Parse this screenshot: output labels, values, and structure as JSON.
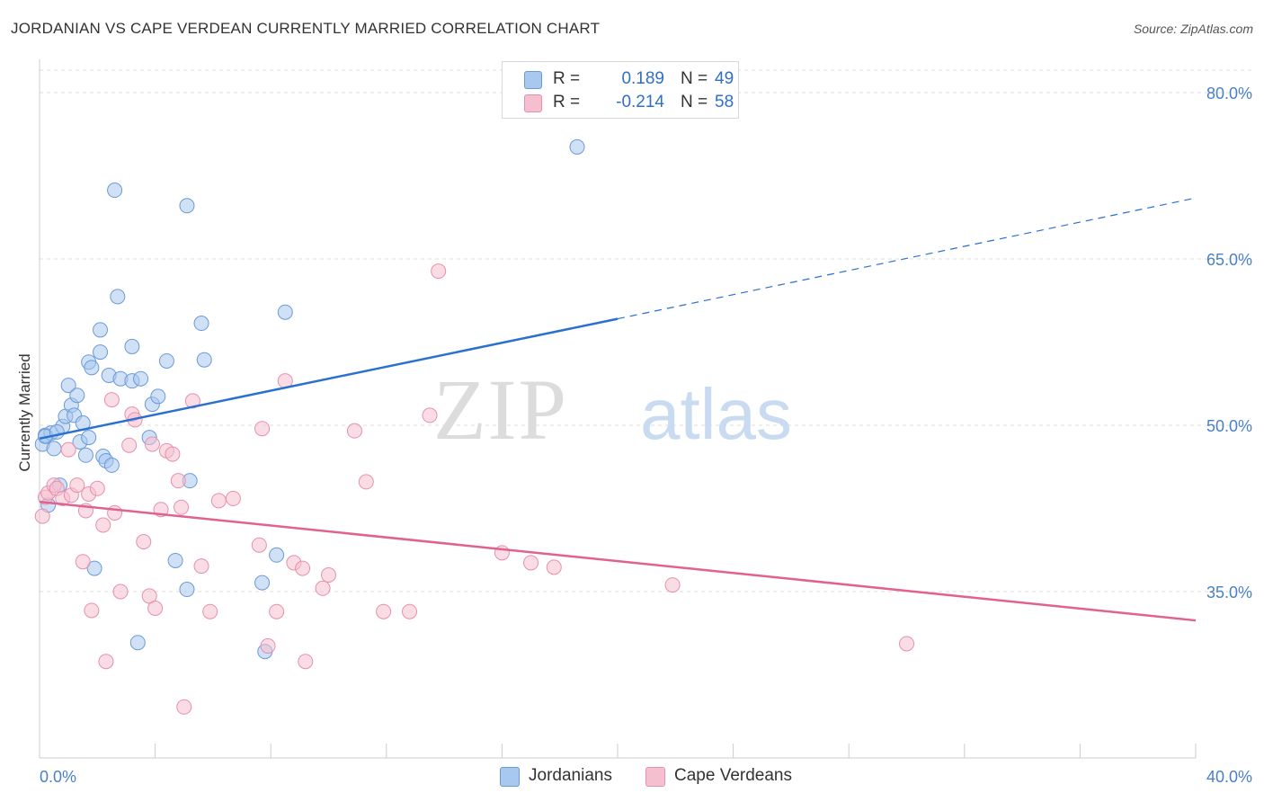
{
  "header": {
    "title": "JORDANIAN VS CAPE VERDEAN CURRENTLY MARRIED CORRELATION CHART",
    "source": "Source: ZipAtlas.com"
  },
  "legend": {
    "rows": [
      {
        "r_label": "R =",
        "r_value": "0.189",
        "n_label": "N =",
        "n_value": "49"
      },
      {
        "r_label": "R =",
        "r_value": "-0.214",
        "n_label": "N =",
        "n_value": "58"
      }
    ]
  },
  "bottom_legend": {
    "items": [
      {
        "label": "Jordanians"
      },
      {
        "label": "Cape Verdeans"
      }
    ]
  },
  "watermark": {
    "zip": "ZIP",
    "atlas": "atlas"
  },
  "colors": {
    "blue_fill": "#a9c8ef",
    "blue_stroke": "#6a9ad8",
    "blue_line": "#2a70d0",
    "pink_fill": "#f6bfd0",
    "pink_stroke": "#e690ad",
    "pink_line": "#e0628e",
    "grid": "#dddddd",
    "tick_text": "#4a80c8"
  },
  "chart_data": {
    "type": "scatter",
    "title": "JORDANIAN VS CAPE VERDEAN CURRENTLY MARRIED CORRELATION CHART",
    "xlabel": "",
    "ylabel": "Currently Married",
    "xlim": [
      0,
      40
    ],
    "ylim": [
      20,
      83
    ],
    "x_tick_labels": [
      "0.0%",
      "40.0%"
    ],
    "y_ticks": [
      35,
      50,
      65,
      80
    ],
    "y_tick_labels": [
      "35.0%",
      "50.0%",
      "65.0%",
      "80.0%"
    ],
    "grid": true,
    "legend_position": "top-center",
    "series": [
      {
        "name": "Jordanians",
        "r": 0.189,
        "n": 49,
        "trend": {
          "x0": 0,
          "y0": 48.8,
          "x1": 20,
          "y1": 59.6,
          "x_dash_end": 40,
          "y_dash_end": 70.5
        },
        "points": [
          {
            "x": 0.1,
            "y": 48.3
          },
          {
            "x": 0.2,
            "y": 49.1
          },
          {
            "x": 0.4,
            "y": 49.3
          },
          {
            "x": 0.5,
            "y": 47.9
          },
          {
            "x": 0.3,
            "y": 42.8
          },
          {
            "x": 0.7,
            "y": 44.6
          },
          {
            "x": 0.8,
            "y": 49.9
          },
          {
            "x": 0.9,
            "y": 50.8
          },
          {
            "x": 1.0,
            "y": 53.6
          },
          {
            "x": 1.1,
            "y": 51.8
          },
          {
            "x": 1.2,
            "y": 50.9
          },
          {
            "x": 1.3,
            "y": 52.7
          },
          {
            "x": 1.4,
            "y": 48.5
          },
          {
            "x": 1.5,
            "y": 50.2
          },
          {
            "x": 1.6,
            "y": 47.3
          },
          {
            "x": 1.7,
            "y": 48.9
          },
          {
            "x": 1.7,
            "y": 55.7
          },
          {
            "x": 1.8,
            "y": 55.2
          },
          {
            "x": 2.1,
            "y": 58.6
          },
          {
            "x": 2.1,
            "y": 56.6
          },
          {
            "x": 2.2,
            "y": 47.2
          },
          {
            "x": 2.3,
            "y": 46.8
          },
          {
            "x": 2.4,
            "y": 54.5
          },
          {
            "x": 2.5,
            "y": 46.4
          },
          {
            "x": 2.6,
            "y": 71.2
          },
          {
            "x": 2.7,
            "y": 61.6
          },
          {
            "x": 2.8,
            "y": 54.2
          },
          {
            "x": 3.2,
            "y": 57.1
          },
          {
            "x": 3.2,
            "y": 54.0
          },
          {
            "x": 3.5,
            "y": 54.2
          },
          {
            "x": 3.8,
            "y": 48.9
          },
          {
            "x": 3.9,
            "y": 51.9
          },
          {
            "x": 4.1,
            "y": 52.6
          },
          {
            "x": 4.4,
            "y": 55.8
          },
          {
            "x": 4.7,
            "y": 37.8
          },
          {
            "x": 5.1,
            "y": 35.2
          },
          {
            "x": 5.1,
            "y": 69.8
          },
          {
            "x": 5.2,
            "y": 45.0
          },
          {
            "x": 5.6,
            "y": 59.2
          },
          {
            "x": 5.7,
            "y": 55.9
          },
          {
            "x": 1.9,
            "y": 37.1
          },
          {
            "x": 3.4,
            "y": 30.4
          },
          {
            "x": 7.7,
            "y": 35.8
          },
          {
            "x": 7.8,
            "y": 29.6
          },
          {
            "x": 8.2,
            "y": 38.3
          },
          {
            "x": 8.5,
            "y": 60.2
          },
          {
            "x": 18.6,
            "y": 75.1
          },
          {
            "x": 0.2,
            "y": 49.0
          },
          {
            "x": 0.6,
            "y": 49.4
          }
        ]
      },
      {
        "name": "Cape Verdeans",
        "r": -0.214,
        "n": 58,
        "trend": {
          "x0": 0,
          "y0": 43.1,
          "x1": 40,
          "y1": 32.4
        },
        "points": [
          {
            "x": 0.1,
            "y": 41.8
          },
          {
            "x": 0.2,
            "y": 43.5
          },
          {
            "x": 0.3,
            "y": 43.9
          },
          {
            "x": 0.5,
            "y": 44.6
          },
          {
            "x": 0.6,
            "y": 44.3
          },
          {
            "x": 0.8,
            "y": 43.4
          },
          {
            "x": 1.0,
            "y": 47.8
          },
          {
            "x": 1.1,
            "y": 43.7
          },
          {
            "x": 1.3,
            "y": 44.6
          },
          {
            "x": 1.5,
            "y": 37.7
          },
          {
            "x": 1.6,
            "y": 42.3
          },
          {
            "x": 1.7,
            "y": 43.8
          },
          {
            "x": 1.8,
            "y": 33.3
          },
          {
            "x": 2.0,
            "y": 44.3
          },
          {
            "x": 2.2,
            "y": 41.0
          },
          {
            "x": 2.3,
            "y": 28.7
          },
          {
            "x": 2.5,
            "y": 52.3
          },
          {
            "x": 2.6,
            "y": 42.1
          },
          {
            "x": 2.8,
            "y": 35.0
          },
          {
            "x": 3.1,
            "y": 48.2
          },
          {
            "x": 3.2,
            "y": 51.0
          },
          {
            "x": 3.3,
            "y": 50.5
          },
          {
            "x": 3.6,
            "y": 39.5
          },
          {
            "x": 3.8,
            "y": 34.6
          },
          {
            "x": 3.9,
            "y": 48.3
          },
          {
            "x": 4.0,
            "y": 33.5
          },
          {
            "x": 4.2,
            "y": 42.4
          },
          {
            "x": 4.4,
            "y": 47.7
          },
          {
            "x": 4.6,
            "y": 47.4
          },
          {
            "x": 4.8,
            "y": 45.0
          },
          {
            "x": 4.9,
            "y": 42.6
          },
          {
            "x": 5.0,
            "y": 24.6
          },
          {
            "x": 5.3,
            "y": 52.2
          },
          {
            "x": 5.6,
            "y": 37.3
          },
          {
            "x": 5.9,
            "y": 33.2
          },
          {
            "x": 6.2,
            "y": 43.2
          },
          {
            "x": 6.7,
            "y": 43.4
          },
          {
            "x": 7.6,
            "y": 39.2
          },
          {
            "x": 7.7,
            "y": 49.7
          },
          {
            "x": 7.9,
            "y": 30.1
          },
          {
            "x": 8.2,
            "y": 33.2
          },
          {
            "x": 8.5,
            "y": 54.0
          },
          {
            "x": 8.8,
            "y": 37.6
          },
          {
            "x": 9.1,
            "y": 37.1
          },
          {
            "x": 9.2,
            "y": 28.7
          },
          {
            "x": 9.8,
            "y": 35.3
          },
          {
            "x": 10.0,
            "y": 36.5
          },
          {
            "x": 10.9,
            "y": 49.5
          },
          {
            "x": 11.3,
            "y": 44.9
          },
          {
            "x": 11.9,
            "y": 33.2
          },
          {
            "x": 12.8,
            "y": 33.2
          },
          {
            "x": 13.5,
            "y": 50.9
          },
          {
            "x": 13.8,
            "y": 63.9
          },
          {
            "x": 16.0,
            "y": 38.5
          },
          {
            "x": 17.0,
            "y": 37.6
          },
          {
            "x": 17.8,
            "y": 37.2
          },
          {
            "x": 21.9,
            "y": 35.6
          },
          {
            "x": 30.0,
            "y": 30.3
          }
        ]
      }
    ]
  }
}
